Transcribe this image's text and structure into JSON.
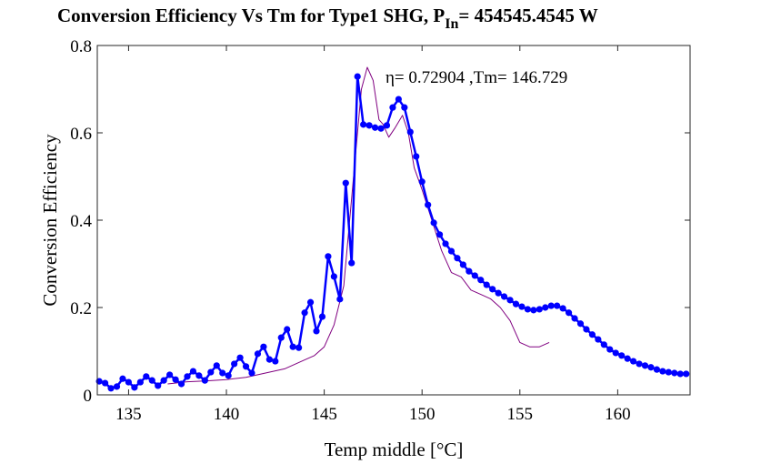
{
  "chart_data": {
    "type": "line",
    "title": "Conversion Efficiency Vs Tm for Type1 SHG, P",
    "title_subscript": "In",
    "title_suffix": "= 454545.4545 W",
    "xlabel": "Temp middle [°C]",
    "ylabel": "Conversion Efficiency",
    "annotation": "η= 0.72904 ,Tm= 146.729",
    "xlim": [
      133.4,
      163.7
    ],
    "ylim": [
      0,
      0.8
    ],
    "xticks": [
      135,
      140,
      145,
      150,
      155,
      160
    ],
    "yticks": [
      0,
      0.2,
      0.4,
      0.6,
      0.8
    ],
    "grid": false,
    "series": [
      {
        "color": "#800080",
        "marker": false,
        "line_width": 1,
        "x": [
          137.0,
          138.0,
          139.0,
          140.0,
          141.0,
          142.0,
          143.0,
          144.0,
          144.5,
          145.0,
          145.5,
          146.0,
          146.3,
          146.6,
          146.9,
          147.2,
          147.5,
          147.8,
          148.0,
          148.3,
          148.6,
          149.0,
          149.3,
          149.6,
          150.0,
          150.5,
          151.0,
          151.5,
          152.0,
          152.5,
          153.0,
          153.5,
          154.0,
          154.5,
          155.0,
          155.5,
          156.0,
          156.5
        ],
        "values": [
          0.025,
          0.03,
          0.032,
          0.035,
          0.04,
          0.05,
          0.06,
          0.08,
          0.09,
          0.11,
          0.16,
          0.25,
          0.4,
          0.55,
          0.7,
          0.75,
          0.72,
          0.63,
          0.62,
          0.59,
          0.61,
          0.64,
          0.6,
          0.52,
          0.47,
          0.4,
          0.33,
          0.28,
          0.27,
          0.24,
          0.23,
          0.22,
          0.2,
          0.17,
          0.12,
          0.11,
          0.11,
          0.12
        ]
      },
      {
        "color": "#0000ff",
        "marker": true,
        "line_width": 2.5,
        "x": [
          133.5,
          133.8,
          134.1,
          134.4,
          134.7,
          135.0,
          135.3,
          135.6,
          135.9,
          136.2,
          136.5,
          136.8,
          137.1,
          137.4,
          137.7,
          138.0,
          138.3,
          138.6,
          138.9,
          139.2,
          139.5,
          139.8,
          140.1,
          140.4,
          140.7,
          141.0,
          141.3,
          141.6,
          141.9,
          142.2,
          142.5,
          142.8,
          143.1,
          143.4,
          143.7,
          144.0,
          144.3,
          144.6,
          144.9,
          145.2,
          145.5,
          145.8,
          146.1,
          146.4,
          146.7,
          147.0,
          147.3,
          147.6,
          147.9,
          148.2,
          148.5,
          148.8,
          149.1,
          149.4,
          149.7,
          150.0,
          150.3,
          150.6,
          150.9,
          151.2,
          151.5,
          151.8,
          152.1,
          152.4,
          152.7,
          153.0,
          153.3,
          153.6,
          153.9,
          154.2,
          154.5,
          154.8,
          155.1,
          155.4,
          155.7,
          156.0,
          156.3,
          156.6,
          156.9,
          157.2,
          157.5,
          157.8,
          158.1,
          158.4,
          158.7,
          159.0,
          159.3,
          159.6,
          159.9,
          160.2,
          160.5,
          160.8,
          161.1,
          161.4,
          161.7,
          162.0,
          162.3,
          162.6,
          162.9,
          163.2,
          163.5
        ],
        "values": [
          0.031,
          0.027,
          0.015,
          0.019,
          0.037,
          0.029,
          0.017,
          0.029,
          0.042,
          0.033,
          0.021,
          0.033,
          0.046,
          0.035,
          0.025,
          0.042,
          0.054,
          0.044,
          0.033,
          0.052,
          0.067,
          0.05,
          0.044,
          0.071,
          0.085,
          0.065,
          0.05,
          0.094,
          0.11,
          0.081,
          0.077,
          0.131,
          0.15,
          0.11,
          0.108,
          0.188,
          0.212,
          0.146,
          0.179,
          0.317,
          0.271,
          0.219,
          0.485,
          0.302,
          0.729,
          0.619,
          0.617,
          0.612,
          0.61,
          0.617,
          0.658,
          0.677,
          0.658,
          0.602,
          0.546,
          0.488,
          0.435,
          0.394,
          0.367,
          0.346,
          0.329,
          0.313,
          0.298,
          0.283,
          0.273,
          0.263,
          0.252,
          0.242,
          0.233,
          0.225,
          0.217,
          0.208,
          0.202,
          0.196,
          0.194,
          0.196,
          0.2,
          0.204,
          0.204,
          0.198,
          0.188,
          0.175,
          0.163,
          0.15,
          0.138,
          0.127,
          0.115,
          0.104,
          0.096,
          0.09,
          0.083,
          0.077,
          0.071,
          0.067,
          0.063,
          0.058,
          0.054,
          0.052,
          0.05,
          0.048,
          0.048
        ]
      }
    ]
  }
}
